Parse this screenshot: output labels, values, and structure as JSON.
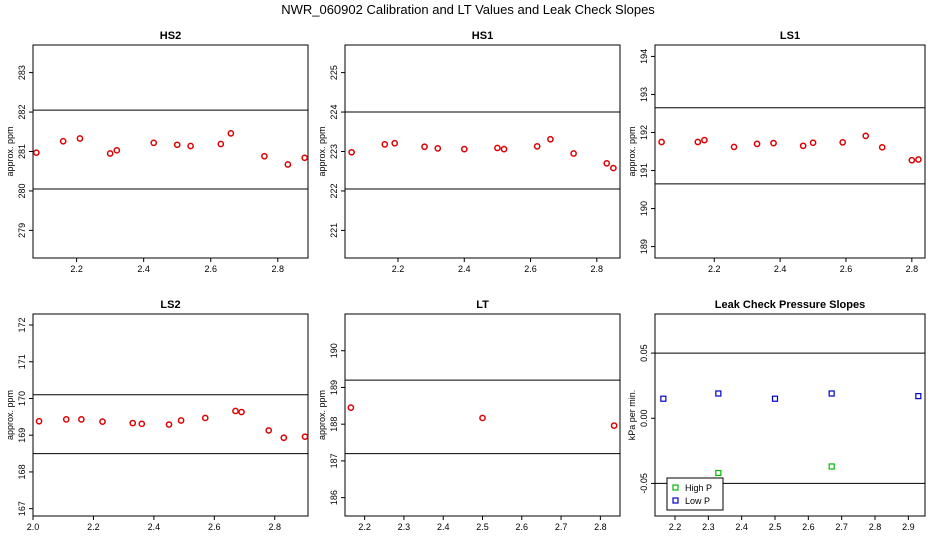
{
  "title": "NWR_060902  Calibration and LT Values and Leak Check Slopes",
  "chart_data": [
    {
      "type": "scatter",
      "title": "HS2",
      "ylabel": "approx. ppm",
      "xlim": [
        2.07,
        2.89
      ],
      "ylim": [
        278.3,
        283.7
      ],
      "xticks": [
        "2.2",
        "2.4",
        "2.6",
        "2.8"
      ],
      "yticks": [
        "279",
        "280",
        "281",
        "282",
        "283"
      ],
      "hlines": [
        282.05,
        280.05
      ],
      "series": [
        {
          "color": "#dd0000",
          "points": [
            [
              2.08,
              280.97
            ],
            [
              2.16,
              281.26
            ],
            [
              2.21,
              281.33
            ],
            [
              2.3,
              280.95
            ],
            [
              2.32,
              281.03
            ],
            [
              2.43,
              281.22
            ],
            [
              2.5,
              281.17
            ],
            [
              2.54,
              281.14
            ],
            [
              2.63,
              281.19
            ],
            [
              2.66,
              281.46
            ],
            [
              2.76,
              280.88
            ],
            [
              2.83,
              280.67
            ],
            [
              2.88,
              280.84
            ]
          ]
        }
      ]
    },
    {
      "type": "scatter",
      "title": "HS1",
      "ylabel": "approx. ppm",
      "xlim": [
        2.04,
        2.87
      ],
      "ylim": [
        220.3,
        225.7
      ],
      "xticks": [
        "2.2",
        "2.4",
        "2.6",
        "2.8"
      ],
      "yticks": [
        "221",
        "222",
        "223",
        "224",
        "225"
      ],
      "hlines": [
        224.0,
        222.05
      ],
      "series": [
        {
          "color": "#dd0000",
          "points": [
            [
              2.06,
              222.98
            ],
            [
              2.16,
              223.18
            ],
            [
              2.19,
              223.21
            ],
            [
              2.28,
              223.12
            ],
            [
              2.32,
              223.08
            ],
            [
              2.4,
              223.06
            ],
            [
              2.5,
              223.09
            ],
            [
              2.52,
              223.06
            ],
            [
              2.62,
              223.13
            ],
            [
              2.66,
              223.31
            ],
            [
              2.73,
              222.95
            ],
            [
              2.83,
              222.7
            ],
            [
              2.85,
              222.58
            ]
          ]
        }
      ]
    },
    {
      "type": "scatter",
      "title": "LS1",
      "ylabel": "approx. ppm",
      "xlim": [
        2.02,
        2.84
      ],
      "ylim": [
        188.7,
        194.3
      ],
      "xticks": [
        "2.2",
        "2.4",
        "2.6",
        "2.8"
      ],
      "yticks": [
        "189",
        "190",
        "191",
        "192",
        "193",
        "194"
      ],
      "hlines": [
        192.65,
        190.65
      ],
      "series": [
        {
          "color": "#dd0000",
          "points": [
            [
              2.04,
              191.75
            ],
            [
              2.15,
              191.75
            ],
            [
              2.17,
              191.8
            ],
            [
              2.26,
              191.62
            ],
            [
              2.33,
              191.7
            ],
            [
              2.38,
              191.72
            ],
            [
              2.47,
              191.65
            ],
            [
              2.5,
              191.73
            ],
            [
              2.59,
              191.74
            ],
            [
              2.66,
              191.91
            ],
            [
              2.71,
              191.61
            ],
            [
              2.8,
              191.27
            ],
            [
              2.82,
              191.29
            ]
          ]
        }
      ]
    },
    {
      "type": "scatter",
      "title": "LS2",
      "ylabel": "approx. ppm",
      "xlim": [
        2.0,
        2.91
      ],
      "ylim": [
        166.8,
        172.3
      ],
      "xticks": [
        "2.0",
        "2.2",
        "2.4",
        "2.6",
        "2.8"
      ],
      "yticks": [
        "167",
        "168",
        "169",
        "170",
        "171",
        "172"
      ],
      "hlines": [
        170.1,
        168.5
      ],
      "series": [
        {
          "color": "#dd0000",
          "points": [
            [
              2.02,
              169.38
            ],
            [
              2.11,
              169.43
            ],
            [
              2.16,
              169.43
            ],
            [
              2.23,
              169.37
            ],
            [
              2.33,
              169.33
            ],
            [
              2.36,
              169.31
            ],
            [
              2.45,
              169.29
            ],
            [
              2.49,
              169.4
            ],
            [
              2.57,
              169.47
            ],
            [
              2.67,
              169.66
            ],
            [
              2.69,
              169.63
            ],
            [
              2.78,
              169.13
            ],
            [
              2.83,
              168.93
            ],
            [
              2.9,
              168.96
            ]
          ]
        }
      ]
    },
    {
      "type": "scatter",
      "title": "LT",
      "ylabel": "approx. ppm",
      "xlim": [
        2.15,
        2.85
      ],
      "ylim": [
        185.5,
        191.0
      ],
      "xticks": [
        "2.2",
        "2.3",
        "2.4",
        "2.5",
        "2.6",
        "2.7",
        "2.8"
      ],
      "yticks": [
        "186",
        "187",
        "188",
        "189",
        "190"
      ],
      "hlines": [
        189.2,
        187.2
      ],
      "series": [
        {
          "color": "#dd0000",
          "points": [
            [
              2.165,
              188.45
            ],
            [
              2.5,
              188.17
            ],
            [
              2.835,
              187.96
            ]
          ]
        }
      ]
    },
    {
      "type": "scatter",
      "title": "Leak Check Pressure Slopes",
      "ylabel": "kPa per min.",
      "xlim": [
        2.14,
        2.95
      ],
      "ylim": [
        -0.075,
        0.08
      ],
      "xticks": [
        "2.2",
        "2.3",
        "2.4",
        "2.5",
        "2.6",
        "2.7",
        "2.8",
        "2.9"
      ],
      "yticks": [
        "-0.05",
        "0.00",
        "0.05"
      ],
      "hlines": [
        0.05,
        -0.05
      ],
      "legend": {
        "position": "bottom-left"
      },
      "series": [
        {
          "name": "High P",
          "color": "#00bb00",
          "points": [
            [
              2.33,
              -0.042
            ],
            [
              2.67,
              -0.037
            ]
          ]
        },
        {
          "name": "Low P",
          "color": "#0000cc",
          "points": [
            [
              2.165,
              0.015
            ],
            [
              2.33,
              0.019
            ],
            [
              2.5,
              0.015
            ],
            [
              2.67,
              0.019
            ],
            [
              2.93,
              0.017
            ]
          ]
        }
      ]
    }
  ]
}
